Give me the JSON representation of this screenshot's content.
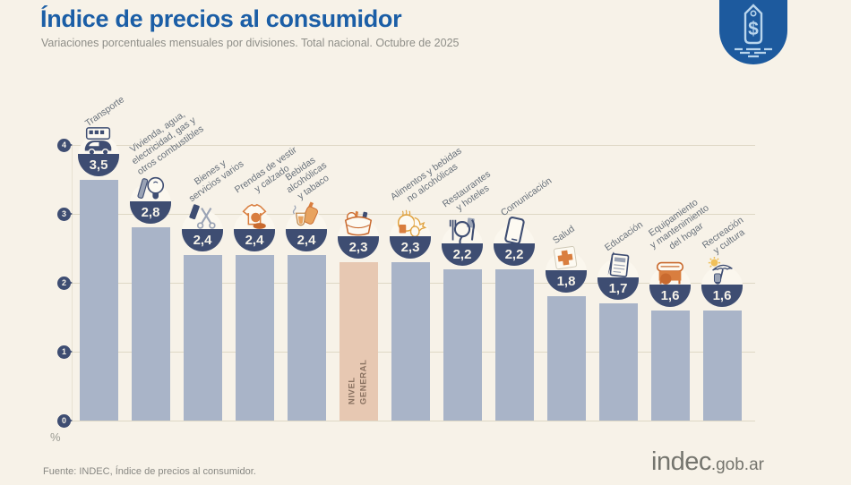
{
  "header": {
    "title": "Índice de precios al consumidor",
    "subtitle": "Variaciones porcentuales mensuales por divisiones. Total nacional. Octubre de 2025"
  },
  "chart_data": {
    "type": "bar",
    "title": "Índice de precios al consumidor",
    "subtitle": "Variaciones porcentuales mensuales por divisiones. Total nacional. Octubre de 2025",
    "unit_label": "%",
    "ylim": [
      0,
      4
    ],
    "yticks": [
      4,
      3,
      2,
      1,
      0
    ],
    "grid": true,
    "highlight_label_lines": [
      "NIVEL",
      "GENERAL"
    ],
    "categories": [
      {
        "name": "Transporte",
        "label_lines": [
          "Transporte"
        ],
        "value": 3.5,
        "value_label": "3,5",
        "icon": "bus-car-icon",
        "highlight": false
      },
      {
        "name": "Vivienda, agua, electricidad, gas y otros combustibles",
        "label_lines": [
          "Vivienda, agua,",
          "electricidad, gas y",
          "otros combustibles"
        ],
        "value": 2.8,
        "value_label": "2,8",
        "icon": "lightbulb-tools-icon",
        "highlight": false
      },
      {
        "name": "Bienes y servicios varios",
        "label_lines": [
          "Bienes y",
          "servicios varios"
        ],
        "value": 2.4,
        "value_label": "2,4",
        "icon": "scissors-grooming-icon",
        "highlight": false
      },
      {
        "name": "Prendas de vestir y calzado",
        "label_lines": [
          "Prendas de vestir",
          "y calzado"
        ],
        "value": 2.4,
        "value_label": "2,4",
        "icon": "tshirt-shoe-icon",
        "highlight": false
      },
      {
        "name": "Bebidas alcohólicas y tabaco",
        "label_lines": [
          "Bebidas",
          "alcohólicas",
          "y tabaco"
        ],
        "value": 2.4,
        "value_label": "2,4",
        "icon": "drinks-tobacco-icon",
        "highlight": false
      },
      {
        "name": "Nivel general",
        "label_lines": [],
        "value": 2.3,
        "value_label": "2,3",
        "icon": "shopping-basket-icon",
        "highlight": true
      },
      {
        "name": "Alimentos y bebidas no alcohólicas",
        "label_lines": [
          "Alimentos y bebidas",
          "no alcohólicas"
        ],
        "value": 2.3,
        "value_label": "2,3",
        "icon": "poultry-food-icon",
        "highlight": false
      },
      {
        "name": "Restaurantes y hoteles",
        "label_lines": [
          "Restaurantes",
          "y hoteles"
        ],
        "value": 2.2,
        "value_label": "2,2",
        "icon": "cutlery-plate-icon",
        "highlight": false
      },
      {
        "name": "Comunicación",
        "label_lines": [
          "Comunicación"
        ],
        "value": 2.2,
        "value_label": "2,2",
        "icon": "smartphone-icon",
        "highlight": false
      },
      {
        "name": "Salud",
        "label_lines": [
          "Salud"
        ],
        "value": 1.8,
        "value_label": "1,8",
        "icon": "medical-cross-icon",
        "highlight": false
      },
      {
        "name": "Educación",
        "label_lines": [
          "Educación"
        ],
        "value": 1.7,
        "value_label": "1,7",
        "icon": "notebook-pencil-icon",
        "highlight": false
      },
      {
        "name": "Equipamiento y mantenimiento del hogar",
        "label_lines": [
          "Equipamiento",
          "y mantenimiento",
          "del hogar"
        ],
        "value": 1.6,
        "value_label": "1,6",
        "icon": "appliance-icon",
        "highlight": false
      },
      {
        "name": "Recreación y cultura",
        "label_lines": [
          "Recreación",
          "y cultura"
        ],
        "value": 1.6,
        "value_label": "1,6",
        "icon": "umbrella-sun-icon",
        "highlight": false
      }
    ]
  },
  "footer": {
    "source": "Fuente: INDEC, Índice de precios al consumidor.",
    "logo_main": "indec",
    "logo_suffix": ".gob.ar"
  },
  "colors": {
    "background": "#f7f2e8",
    "title_blue": "#1b5ea6",
    "badge_blue": "#1d5a9e",
    "bar_fill": "#a9b4c8",
    "highlight_bar_fill": "#e7c8b2",
    "bowl_navy": "#3e4d72",
    "accent_orange": "#d97e3f",
    "gridline": "#ded7c5",
    "label_gray": "#67707a"
  }
}
